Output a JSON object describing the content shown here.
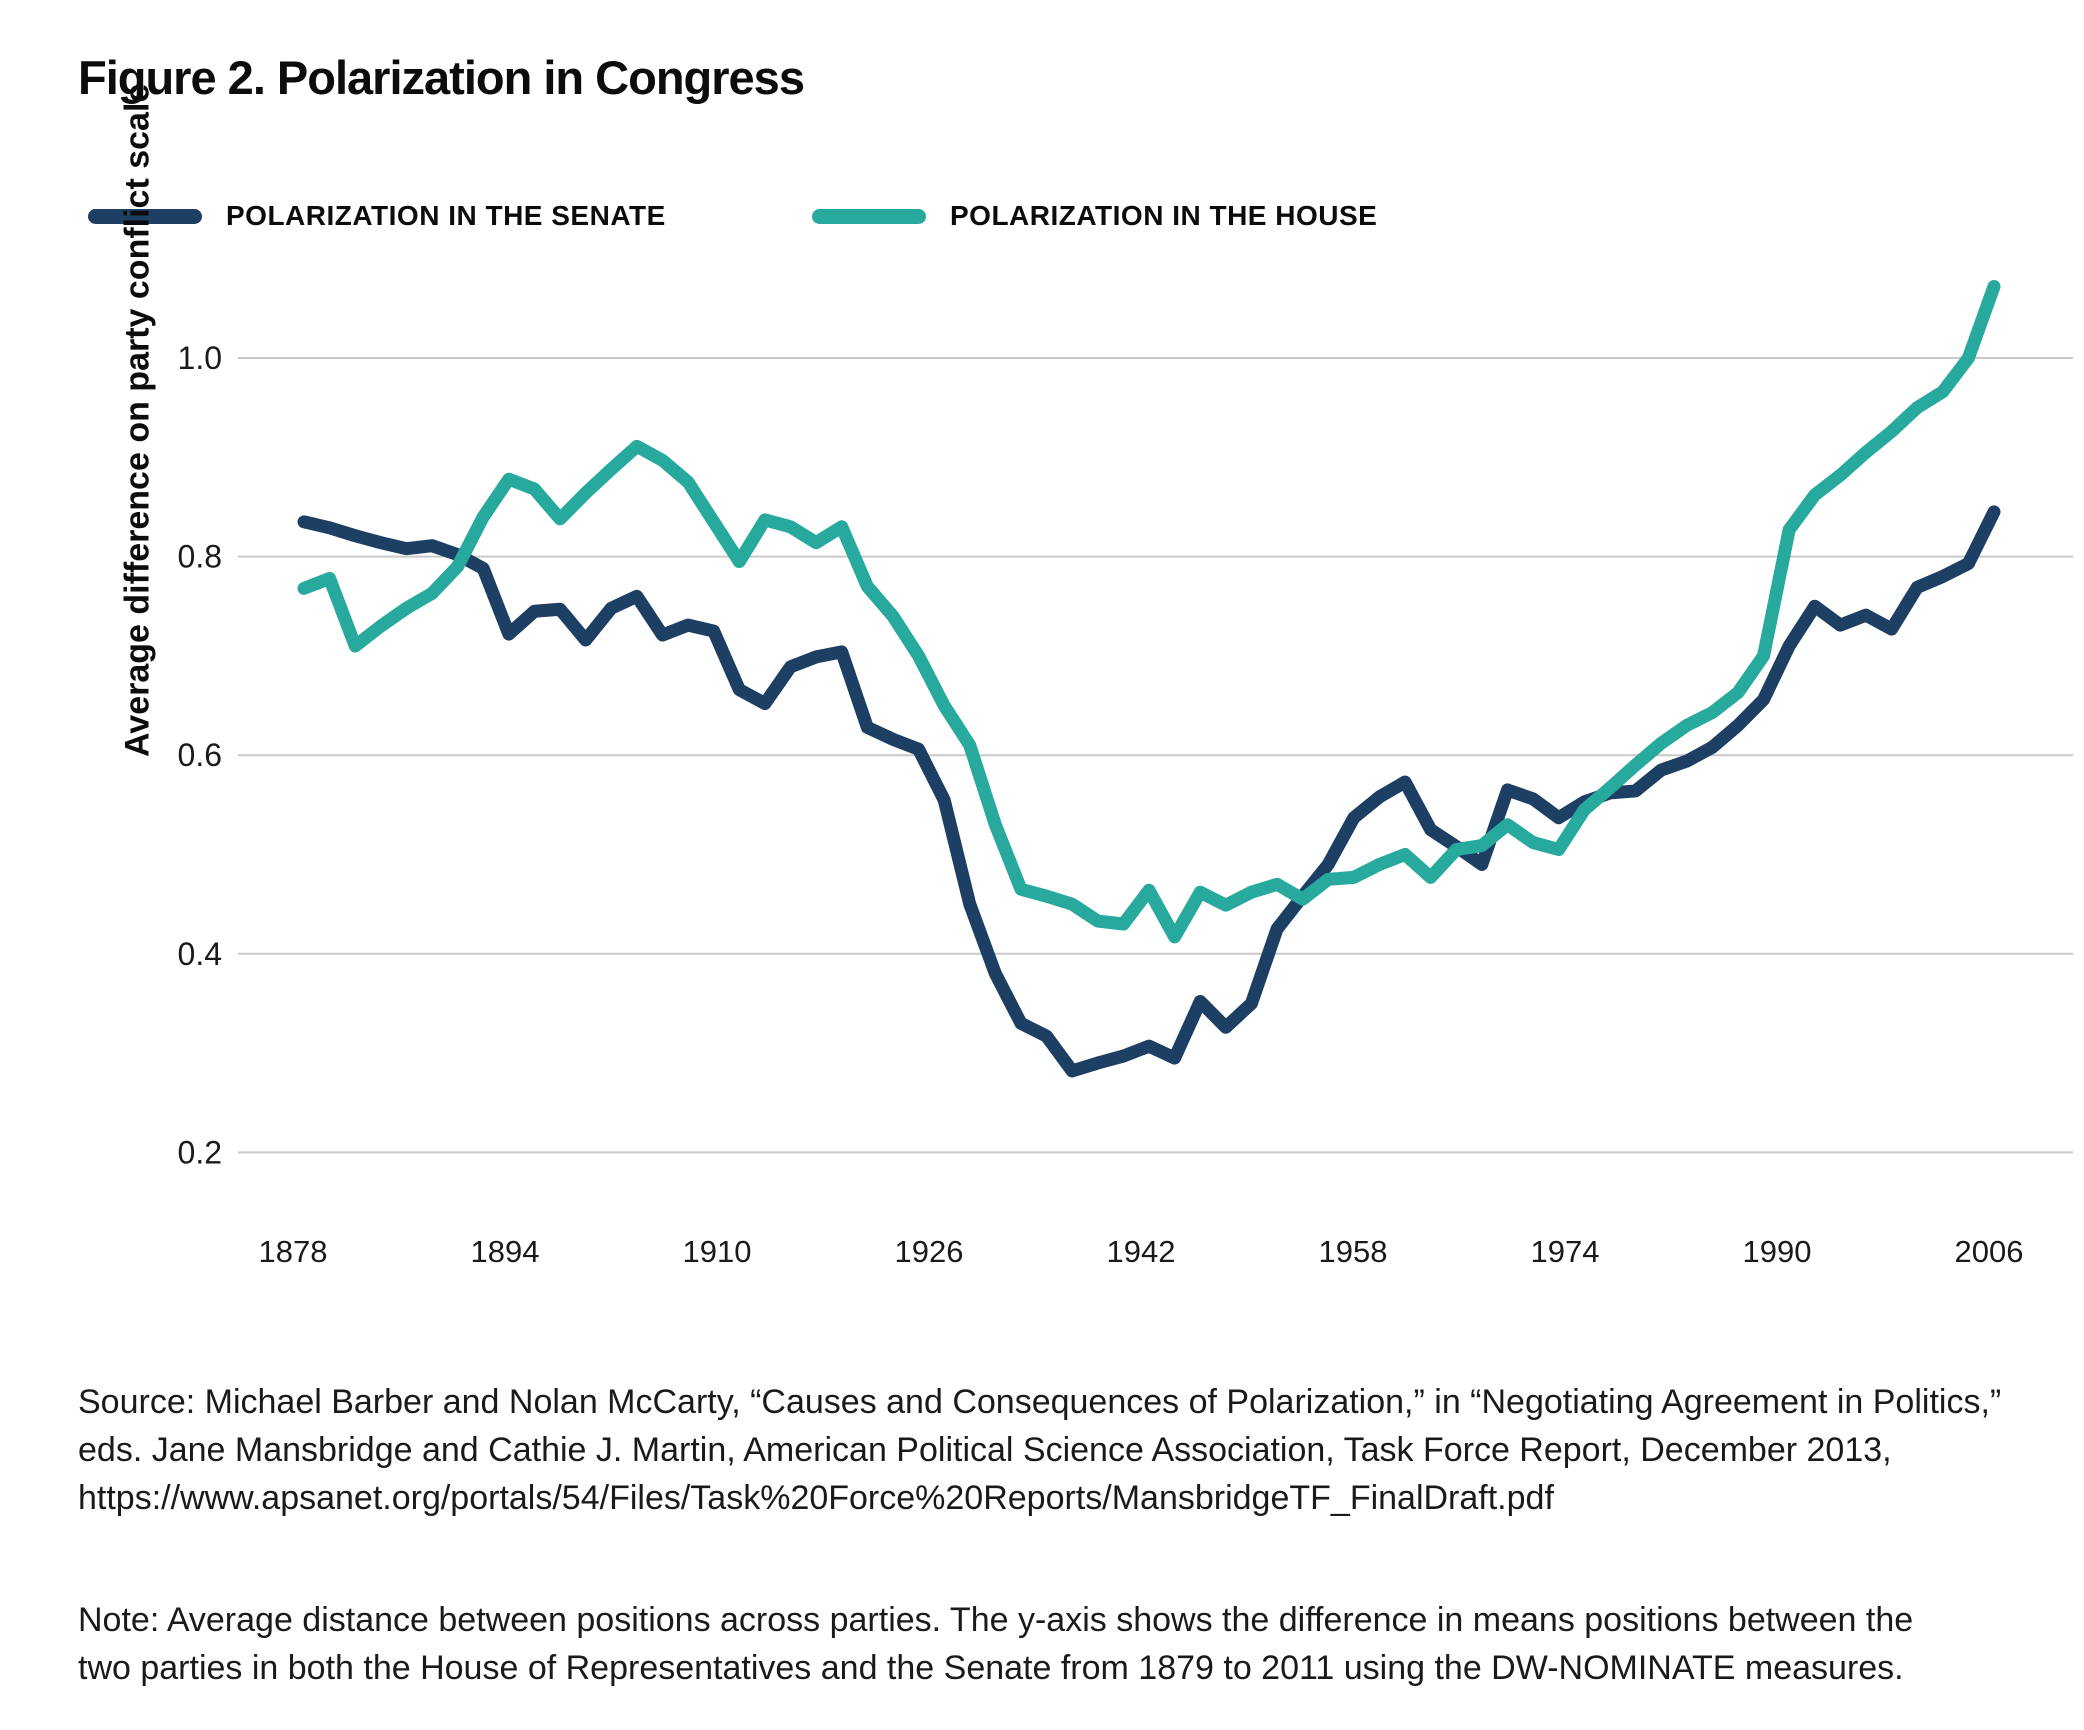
{
  "figure": {
    "title": "Figure 2. Polarization in Congress"
  },
  "legend": {
    "items": [
      {
        "label": "POLARIZATION IN THE SENATE"
      },
      {
        "label": "POLARIZATION IN THE HOUSE"
      }
    ]
  },
  "chart_data": {
    "type": "line",
    "title": "Figure 2. Polarization in Congress",
    "xlabel": "",
    "ylabel": "Average difference on party conflict scale",
    "ylim": [
      0.15,
      1.12
    ],
    "grid": "horizontal-only",
    "legend_position": "top-left",
    "y_ticks": [
      1.0,
      0.8,
      0.6,
      0.4,
      0.2
    ],
    "x_ticks": [
      1878,
      1894,
      1910,
      1926,
      1942,
      1958,
      1974,
      1990,
      2006
    ],
    "x": [
      1879,
      1881,
      1883,
      1885,
      1887,
      1889,
      1891,
      1893,
      1895,
      1897,
      1899,
      1901,
      1903,
      1905,
      1907,
      1909,
      1911,
      1913,
      1915,
      1917,
      1919,
      1921,
      1923,
      1925,
      1927,
      1929,
      1931,
      1933,
      1935,
      1937,
      1939,
      1941,
      1943,
      1945,
      1947,
      1949,
      1951,
      1953,
      1955,
      1957,
      1959,
      1961,
      1963,
      1965,
      1967,
      1969,
      1971,
      1973,
      1975,
      1977,
      1979,
      1981,
      1983,
      1985,
      1987,
      1989,
      1991,
      1993,
      1995,
      1997,
      1999,
      2001,
      2003,
      2005,
      2007,
      2009,
      2011
    ],
    "series": [
      {
        "name": "Polarization in the Senate",
        "color": "#1d3f63",
        "values": [
          0.835,
          0.829,
          0.821,
          0.814,
          0.808,
          0.811,
          0.802,
          0.788,
          0.722,
          0.745,
          0.747,
          0.716,
          0.748,
          0.76,
          0.721,
          0.731,
          0.725,
          0.666,
          0.652,
          0.689,
          0.699,
          0.704,
          0.628,
          0.616,
          0.606,
          0.555,
          0.45,
          0.38,
          0.33,
          0.317,
          0.282,
          0.29,
          0.297,
          0.307,
          0.295,
          0.352,
          0.326,
          0.35,
          0.425,
          0.458,
          0.49,
          0.537,
          0.558,
          0.573,
          0.525,
          0.508,
          0.49,
          0.565,
          0.556,
          0.537,
          0.553,
          0.562,
          0.564,
          0.585,
          0.594,
          0.608,
          0.63,
          0.656,
          0.71,
          0.75,
          0.731,
          0.741,
          0.727,
          0.769,
          0.78,
          0.793,
          0.845
        ]
      },
      {
        "name": "Polarization in the House",
        "color": "#28a99e",
        "values": [
          0.768,
          0.778,
          0.71,
          0.73,
          0.748,
          0.763,
          0.79,
          0.84,
          0.878,
          0.868,
          0.838,
          0.864,
          0.888,
          0.911,
          0.897,
          0.875,
          0.835,
          0.795,
          0.837,
          0.83,
          0.814,
          0.83,
          0.77,
          0.74,
          0.7,
          0.65,
          0.61,
          0.53,
          0.465,
          0.458,
          0.45,
          0.433,
          0.43,
          0.464,
          0.417,
          0.462,
          0.449,
          0.462,
          0.47,
          0.455,
          0.475,
          0.477,
          0.49,
          0.5,
          0.477,
          0.505,
          0.509,
          0.53,
          0.512,
          0.505,
          0.545,
          0.567,
          0.59,
          0.612,
          0.63,
          0.643,
          0.663,
          0.7,
          0.827,
          0.862,
          0.882,
          0.905,
          0.926,
          0.95,
          0.966,
          1.0,
          1.072
        ]
      }
    ]
  },
  "source": {
    "line1": "Source: Michael Barber and Nolan McCarty, “Causes and Consequences of Polarization,” in “Negotiating Agreement in Politics,”",
    "line2": "eds. Jane Mansbridge and Cathie J. Martin, American Political Science Association, Task Force Report, December 2013,",
    "line3": "https://www.apsanet.org/portals/54/Files/Task%20Force%20Reports/MansbridgeTF_FinalDraft.pdf"
  },
  "note": {
    "line1": "Note: Average distance between positions across parties. The y-axis shows the difference in means positions between the",
    "line2": "two parties in both the House of Representatives and the Senate from 1879 to 2011 using the DW-NOMINATE measures."
  },
  "colors": {
    "senate": "#1d3f63",
    "house": "#28a99e",
    "gridline": "#c9c9c9",
    "tick_text": "#1a1a1a"
  }
}
